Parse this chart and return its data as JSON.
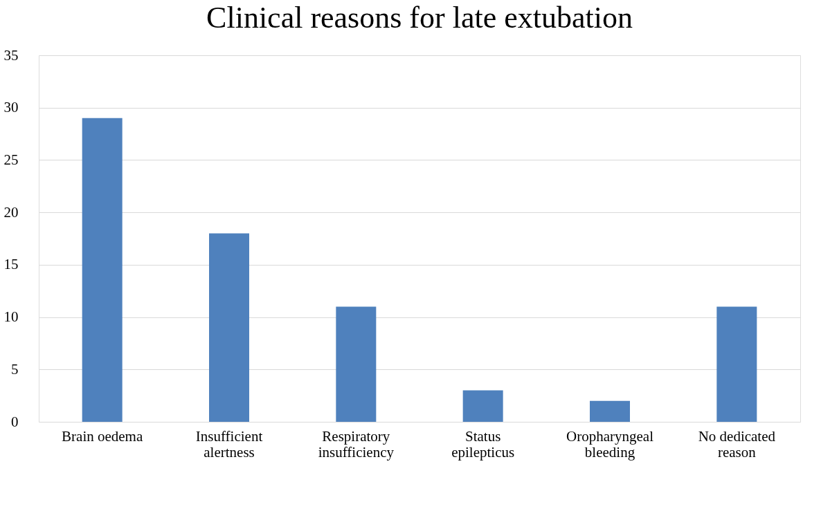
{
  "chart_data": {
    "type": "bar",
    "title": "Clinical reasons for late extubation",
    "categories": [
      "Brain oedema",
      "Insufficient\nalertness",
      "Respiratory\ninsufficiency",
      "Status\nepilepticus",
      "Oropharyngeal\nbleeding",
      "No dedicated\nreason"
    ],
    "values": [
      29,
      18,
      11,
      3,
      2,
      11
    ],
    "color": "#4f81bd",
    "ylim": [
      0,
      35
    ],
    "yticks": [
      0,
      5,
      10,
      15,
      20,
      25,
      30,
      35
    ],
    "grid": "y"
  }
}
